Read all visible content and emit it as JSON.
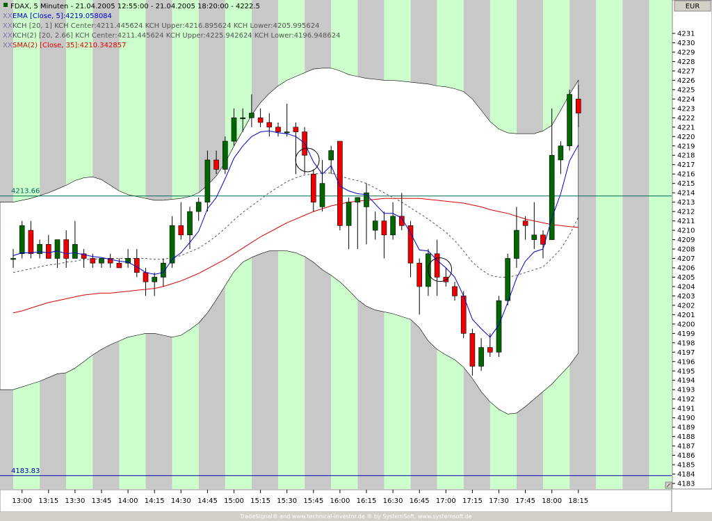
{
  "window": {
    "title": "FDAX, 5 Minuten - 21.04.2005 12:55:00 - 21.04.2005 18:20:00 - 4222.5",
    "currency": "EUR",
    "footer": "TradeSignal® and www.technical-investor.de ® by SystemSoft, www.systemsoft.de"
  },
  "indicators": [
    {
      "prefix": "XX",
      "text": "EMA [Close, 5]:4219.058084",
      "color": "#0000cc"
    },
    {
      "prefix": "XX",
      "text": "KCH [20, 1] KCH Center:4211.445624 KCH Upper:4216.895624 KCH Lower:4205.995624",
      "color": "#555555"
    },
    {
      "prefix": "XX",
      "text": "KCH(2) [20, 2.66] KCH Center:4211.445624 KCH Upper:4225.942624 KCH Lower:4196.948624",
      "color": "#555555"
    },
    {
      "prefix": "XX",
      "text": "SMA(2) [Close, 35]:4210.342857",
      "color": "#dd0000"
    }
  ],
  "colors": {
    "up_candle": "#006600",
    "down_candle": "#ee0000",
    "ema": "#0000cc",
    "sma": "#dd0000",
    "kch_center": "#555555",
    "band_fill": "#ffffff",
    "stripe_a": "#c8c8c8",
    "stripe_b": "#ccffcc",
    "hline": "#006655",
    "hline2": "#0000aa"
  },
  "chart_data": {
    "type": "candlestick",
    "ylim": [
      4183,
      4232
    ],
    "y_ticks": [
      4183,
      4184,
      4185,
      4186,
      4187,
      4188,
      4189,
      4190,
      4191,
      4192,
      4193,
      4194,
      4195,
      4196,
      4197,
      4198,
      4199,
      4200,
      4201,
      4202,
      4203,
      4204,
      4205,
      4206,
      4207,
      4208,
      4209,
      4210,
      4211,
      4212,
      4213,
      4214,
      4215,
      4216,
      4217,
      4218,
      4219,
      4220,
      4221,
      4222,
      4223,
      4224,
      4225,
      4226,
      4227,
      4228,
      4229,
      4230,
      4231
    ],
    "x_labels": [
      "13:00",
      "13:15",
      "13:30",
      "13:45",
      "14:00",
      "14:15",
      "14:30",
      "14:45",
      "15:00",
      "15:15",
      "15:30",
      "15:45",
      "16:00",
      "16:15",
      "16:30",
      "16:45",
      "17:00",
      "17:15",
      "17:30",
      "17:45",
      "18:00",
      "18:15"
    ],
    "hlines": [
      {
        "label": "4213.66",
        "value": 4213.66,
        "color": "#006655"
      },
      {
        "label": "4183.83",
        "value": 4183.83,
        "color": "#0000aa"
      }
    ],
    "candles": [
      {
        "o": 4207,
        "h": 4208,
        "l": 4206,
        "c": 4207
      },
      {
        "o": 4207.5,
        "h": 4211,
        "l": 4207,
        "c": 4210.5
      },
      {
        "o": 4210,
        "h": 4211,
        "l": 4207,
        "c": 4207.5
      },
      {
        "o": 4207.5,
        "h": 4209,
        "l": 4207,
        "c": 4208.5
      },
      {
        "o": 4208.5,
        "h": 4209.5,
        "l": 4207,
        "c": 4207
      },
      {
        "o": 4207,
        "h": 4209,
        "l": 4206,
        "c": 4209
      },
      {
        "o": 4209,
        "h": 4210,
        "l": 4206,
        "c": 4207
      },
      {
        "o": 4207,
        "h": 4211,
        "l": 4207,
        "c": 4208.5
      },
      {
        "o": 4207.5,
        "h": 4208,
        "l": 4206,
        "c": 4207
      },
      {
        "o": 4207,
        "h": 4207.5,
        "l": 4206,
        "c": 4206.5
      },
      {
        "o": 4206.5,
        "h": 4207,
        "l": 4206,
        "c": 4207
      },
      {
        "o": 4207,
        "h": 4207.5,
        "l": 4206,
        "c": 4206.5
      },
      {
        "o": 4206.5,
        "h": 4207,
        "l": 4206,
        "c": 4206
      },
      {
        "o": 4206.5,
        "h": 4208,
        "l": 4206,
        "c": 4207
      },
      {
        "o": 4207,
        "h": 4208,
        "l": 4205,
        "c": 4205.5
      },
      {
        "o": 4205.5,
        "h": 4206,
        "l": 4203,
        "c": 4204.5
      },
      {
        "o": 4204.5,
        "h": 4205.5,
        "l": 4203,
        "c": 4205
      },
      {
        "o": 4205,
        "h": 4207,
        "l": 4204,
        "c": 4206.5
      },
      {
        "o": 4206.5,
        "h": 4211.5,
        "l": 4206,
        "c": 4210.5
      },
      {
        "o": 4210.5,
        "h": 4213,
        "l": 4209,
        "c": 4209.5
      },
      {
        "o": 4209.5,
        "h": 4212.5,
        "l": 4208,
        "c": 4212
      },
      {
        "o": 4212,
        "h": 4213.5,
        "l": 4211,
        "c": 4213
      },
      {
        "o": 4213,
        "h": 4218.5,
        "l": 4212,
        "c": 4217.5
      },
      {
        "o": 4217.5,
        "h": 4218.5,
        "l": 4216,
        "c": 4216.5
      },
      {
        "o": 4216.5,
        "h": 4220,
        "l": 4216,
        "c": 4219.5
      },
      {
        "o": 4219.5,
        "h": 4223,
        "l": 4219,
        "c": 4222
      },
      {
        "o": 4222,
        "h": 4223,
        "l": 4220.5,
        "c": 4222
      },
      {
        "o": 4222,
        "h": 4224.5,
        "l": 4221,
        "c": 4222.5
      },
      {
        "o": 4222,
        "h": 4223,
        "l": 4221,
        "c": 4221.5
      },
      {
        "o": 4221.5,
        "h": 4222.5,
        "l": 4220,
        "c": 4221
      },
      {
        "o": 4221,
        "h": 4221.5,
        "l": 4220,
        "c": 4220.5
      },
      {
        "o": 4220.5,
        "h": 4223.5,
        "l": 4220,
        "c": 4220.5
      },
      {
        "o": 4221,
        "h": 4221.5,
        "l": 4216,
        "c": 4220.5
      },
      {
        "o": 4220.5,
        "h": 4221,
        "l": 4216,
        "c": 4218
      },
      {
        "o": 4216,
        "h": 4216.5,
        "l": 4212,
        "c": 4213
      },
      {
        "o": 4212.5,
        "h": 4217.5,
        "l": 4212,
        "c": 4215
      },
      {
        "o": 4217.5,
        "h": 4219,
        "l": 4216,
        "c": 4218.5
      },
      {
        "o": 4219.5,
        "h": 4219.5,
        "l": 4210,
        "c": 4210.5
      },
      {
        "o": 4210.5,
        "h": 4213.5,
        "l": 4208,
        "c": 4213
      },
      {
        "o": 4213,
        "h": 4213.5,
        "l": 4208,
        "c": 4213.5
      },
      {
        "o": 4212.5,
        "h": 4215,
        "l": 4208.5,
        "c": 4214
      },
      {
        "o": 4210,
        "h": 4212,
        "l": 4209,
        "c": 4211
      },
      {
        "o": 4211,
        "h": 4212,
        "l": 4207,
        "c": 4209.5
      },
      {
        "o": 4209.5,
        "h": 4213,
        "l": 4209,
        "c": 4211.5
      },
      {
        "o": 4211.5,
        "h": 4214,
        "l": 4210,
        "c": 4210.5
      },
      {
        "o": 4210.5,
        "h": 4211,
        "l": 4205,
        "c": 4206.5
      },
      {
        "o": 4206.5,
        "h": 4207,
        "l": 4201,
        "c": 4204
      },
      {
        "o": 4204,
        "h": 4208,
        "l": 4203,
        "c": 4207.5
      },
      {
        "o": 4207.5,
        "h": 4209,
        "l": 4203,
        "c": 4205
      },
      {
        "o": 4205,
        "h": 4206,
        "l": 4204,
        "c": 4204.5
      },
      {
        "o": 4204,
        "h": 4204.5,
        "l": 4202.5,
        "c": 4203
      },
      {
        "o": 4203,
        "h": 4203.5,
        "l": 4198.5,
        "c": 4199
      },
      {
        "o": 4199,
        "h": 4199.5,
        "l": 4194.5,
        "c": 4195.5
      },
      {
        "o": 4195.5,
        "h": 4198.5,
        "l": 4195,
        "c": 4197.5
      },
      {
        "o": 4197.5,
        "h": 4199,
        "l": 4196.5,
        "c": 4197
      },
      {
        "o": 4197,
        "h": 4203,
        "l": 4196.5,
        "c": 4202.5
      },
      {
        "o": 4202.5,
        "h": 4207.5,
        "l": 4202,
        "c": 4207
      },
      {
        "o": 4207,
        "h": 4212.5,
        "l": 4206,
        "c": 4210
      },
      {
        "o": 4211,
        "h": 4211.5,
        "l": 4209,
        "c": 4210.5
      },
      {
        "o": 4209,
        "h": 4213,
        "l": 4208,
        "c": 4209.5
      },
      {
        "o": 4209.5,
        "h": 4210,
        "l": 4207,
        "c": 4208.5
      },
      {
        "o": 4209,
        "h": 4223,
        "l": 4209,
        "c": 4218
      },
      {
        "o": 4217.5,
        "h": 4219.5,
        "l": 4216,
        "c": 4219
      },
      {
        "o": 4219,
        "h": 4225,
        "l": 4218.5,
        "c": 4224.5
      },
      {
        "o": 4224,
        "h": 4225.5,
        "l": 4221,
        "c": 4222.5
      }
    ],
    "ema": [
      4207.3,
      4207.6,
      4207.6,
      4207.7,
      4207.6,
      4207.8,
      4207.5,
      4207.6,
      4207.4,
      4207.2,
      4207.1,
      4206.9,
      4206.7,
      4206.6,
      4206.1,
      4205.5,
      4205.3,
      4205.5,
      4206.9,
      4207.6,
      4208.7,
      4209.9,
      4212.3,
      4213.5,
      4215.5,
      4217.7,
      4219.0,
      4220.0,
      4220.5,
      4220.6,
      4220.4,
      4220.3,
      4220.0,
      4219.3,
      4217.3,
      4216.0,
      4216.9,
      4214.7,
      4214.2,
      4213.9,
      4213.8,
      4212.8,
      4211.8,
      4211.8,
      4211.3,
      4209.7,
      4207.9,
      4207.8,
      4206.8,
      4206.0,
      4205.0,
      4203.0,
      4200.5,
      4199.5,
      4198.6,
      4199.9,
      4202.3,
      4204.9,
      4206.7,
      4207.7,
      4208.0,
      4211.3,
      4213.9,
      4217.4,
      4219.1
    ],
    "kch_center": [
      4205.5,
      4205.7,
      4205.9,
      4206.1,
      4206.3,
      4206.4,
      4206.6,
      4206.7,
      4206.9,
      4206.9,
      4207.0,
      4207.0,
      4207.0,
      4207.0,
      4207.0,
      4207.0,
      4206.9,
      4206.9,
      4207.1,
      4207.3,
      4207.7,
      4208.1,
      4208.7,
      4209.4,
      4210.2,
      4211.1,
      4211.9,
      4212.6,
      4213.3,
      4214.0,
      4214.6,
      4215.2,
      4215.6,
      4215.9,
      4216.0,
      4216.1,
      4216.1,
      4215.8,
      4215.5,
      4215.3,
      4215.0,
      4214.5,
      4214.0,
      4213.5,
      4213.0,
      4212.4,
      4211.8,
      4211.2,
      4210.5,
      4209.8,
      4208.9,
      4207.8,
      4206.6,
      4205.8,
      4205.2,
      4205.0,
      4205.0,
      4205.2,
      4205.5,
      4205.8,
      4206.1,
      4207.0,
      4208.0,
      4209.5,
      4211.4
    ],
    "kch2_upper": [
      4213.0,
      4213.2,
      4213.4,
      4213.7,
      4214.0,
      4214.4,
      4214.8,
      4215.3,
      4215.6,
      4215.7,
      4215.4,
      4214.8,
      4214.2,
      4213.8,
      4213.6,
      4213.4,
      4213.2,
      4213.2,
      4213.3,
      4213.4,
      4213.6,
      4214.0,
      4214.8,
      4215.8,
      4217.2,
      4219.0,
      4220.6,
      4222.3,
      4223.6,
      4224.6,
      4225.4,
      4226.0,
      4226.4,
      4226.8,
      4227.2,
      4227.3,
      4227.3,
      4227.0,
      4226.6,
      4226.4,
      4226.2,
      4226.1,
      4226.0,
      4226.0,
      4225.9,
      4225.8,
      4225.7,
      4225.6,
      4225.4,
      4225.3,
      4225.1,
      4224.8,
      4224.0,
      4222.8,
      4221.6,
      4220.8,
      4220.4,
      4220.3,
      4220.3,
      4220.3,
      4220.6,
      4221.2,
      4222.8,
      4224.5,
      4226.0
    ],
    "kch2_lower": [
      4193.0,
      4193.3,
      4193.6,
      4193.9,
      4194.3,
      4194.7,
      4194.8,
      4195.3,
      4196.0,
      4196.7,
      4197.3,
      4197.8,
      4198.2,
      4198.6,
      4198.8,
      4199.0,
      4199.0,
      4198.8,
      4198.6,
      4198.8,
      4199.4,
      4200.1,
      4201.2,
      4202.6,
      4204.1,
      4205.6,
      4206.6,
      4207.1,
      4207.5,
      4207.8,
      4207.8,
      4207.8,
      4207.6,
      4207.2,
      4206.6,
      4205.8,
      4205.2,
      4204.5,
      4203.6,
      4202.6,
      4201.9,
      4201.5,
      4201.3,
      4201.1,
      4200.8,
      4200.5,
      4199.6,
      4198.2,
      4197.3,
      4196.7,
      4196.2,
      4195.4,
      4194.2,
      4192.8,
      4191.7,
      4190.9,
      4190.4,
      4190.5,
      4191.2,
      4192.0,
      4192.8,
      4193.6,
      4194.6,
      4195.6,
      4196.9
    ],
    "sma": [
      4201.2,
      4201.4,
      4201.7,
      4202.0,
      4202.3,
      4202.5,
      4202.7,
      4202.9,
      4203.1,
      4203.2,
      4203.3,
      4203.3,
      4203.4,
      4203.5,
      4203.6,
      4203.7,
      4203.8,
      4204.0,
      4204.3,
      4204.6,
      4205.0,
      4205.4,
      4205.9,
      4206.4,
      4206.9,
      4207.5,
      4208.1,
      4208.7,
      4209.3,
      4209.8,
      4210.3,
      4210.8,
      4211.2,
      4211.6,
      4212.0,
      4212.3,
      4212.6,
      4212.8,
      4213.0,
      4213.1,
      4213.2,
      4213.3,
      4213.4,
      4213.4,
      4213.4,
      4213.4,
      4213.4,
      4213.3,
      4213.2,
      4213.1,
      4213.0,
      4212.9,
      4212.7,
      4212.5,
      4212.2,
      4212.0,
      4211.8,
      4211.5,
      4211.2,
      4211.0,
      4210.8,
      4210.6,
      4210.5,
      4210.4,
      4210.3
    ]
  }
}
